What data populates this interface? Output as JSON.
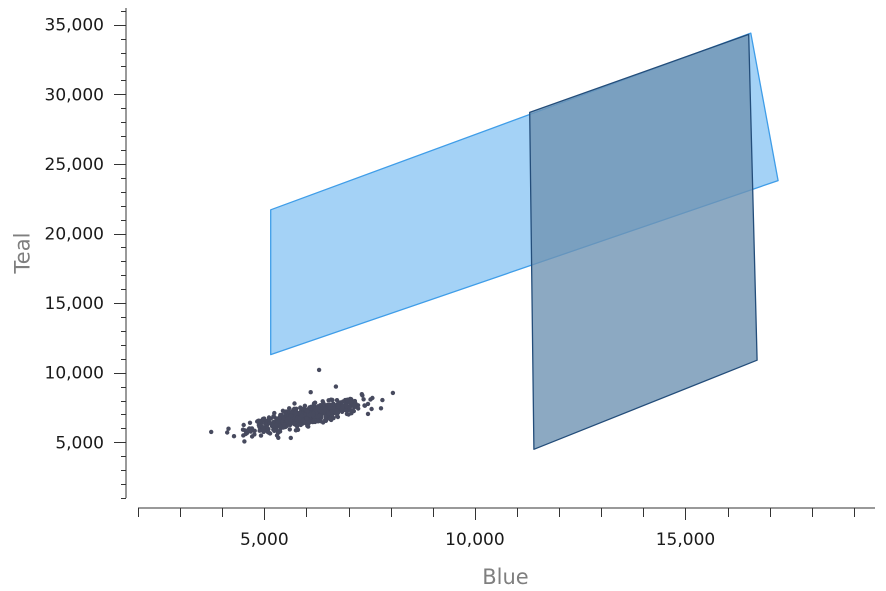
{
  "chart_data": {
    "type": "scatter",
    "title": "",
    "xlabel": "Blue",
    "ylabel": "Teal",
    "xlim": [
      2000,
      19500
    ],
    "ylim": [
      1000,
      36200
    ],
    "x_ticks": [
      5000,
      10000,
      15000
    ],
    "x_tick_labels": [
      "5,000",
      "10,000",
      "15,000"
    ],
    "y_ticks": [
      5000,
      10000,
      15000,
      20000,
      25000,
      30000,
      35000
    ],
    "y_tick_labels": [
      "5,000",
      "10,000",
      "15,000",
      "20,000",
      "25,000",
      "30,000",
      "35,000"
    ],
    "grid": false,
    "colors": {
      "points": "#474a5e",
      "light_fill": "#9fd0f5",
      "light_stroke": "#3f9de8",
      "dark_fill": "#6f94b3",
      "dark_stroke": "#234d7a"
    },
    "cluster": {
      "center": [
        6000,
        6900
      ],
      "spread": [
        650,
        550
      ],
      "count": 650,
      "outliers": [
        [
          4500,
          5500
        ],
        [
          6300,
          10200
        ],
        [
          6100,
          8600
        ],
        [
          7050,
          8100
        ],
        [
          6700,
          9000
        ],
        [
          5300,
          5500
        ],
        [
          7000,
          7000
        ]
      ]
    },
    "polygons": [
      {
        "name": "light",
        "style": "light",
        "points": [
          [
            5150,
            21700
          ],
          [
            5150,
            11300
          ],
          [
            17200,
            23800
          ],
          [
            16550,
            34400
          ]
        ]
      },
      {
        "name": "dark",
        "style": "dark",
        "points": [
          [
            11300,
            28700
          ],
          [
            11400,
            4500
          ],
          [
            16700,
            10900
          ],
          [
            16500,
            34300
          ]
        ]
      }
    ]
  }
}
